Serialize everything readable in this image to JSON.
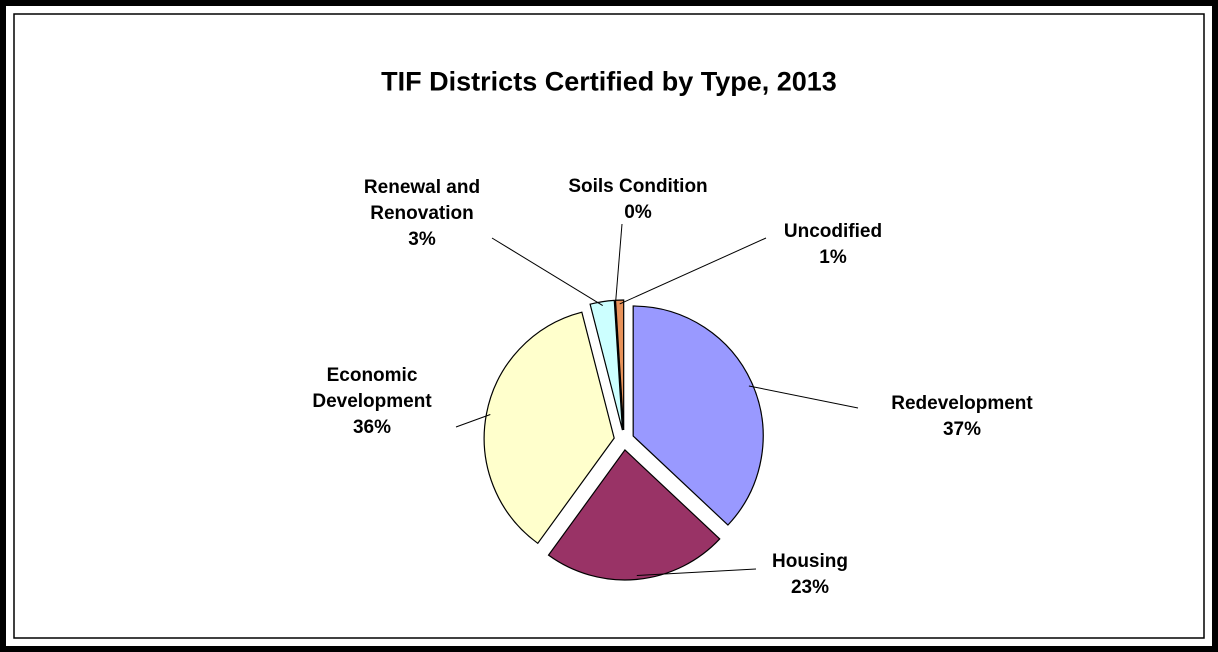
{
  "chart_data": {
    "type": "pie",
    "title": "TIF Districts Certified by Type, 2013",
    "categories": [
      "Redevelopment",
      "Housing",
      "Economic Development",
      "Renewal and Renovation",
      "Soils Condition",
      "Uncodified"
    ],
    "values": [
      37,
      23,
      36,
      3,
      0,
      1
    ],
    "value_labels": [
      "37%",
      "23%",
      "36%",
      "3%",
      "0%",
      "1%"
    ],
    "colors": [
      "#9999ff",
      "#993366",
      "#ffffcc",
      "#ccffff",
      "#ffff99",
      "#e8925a"
    ]
  }
}
